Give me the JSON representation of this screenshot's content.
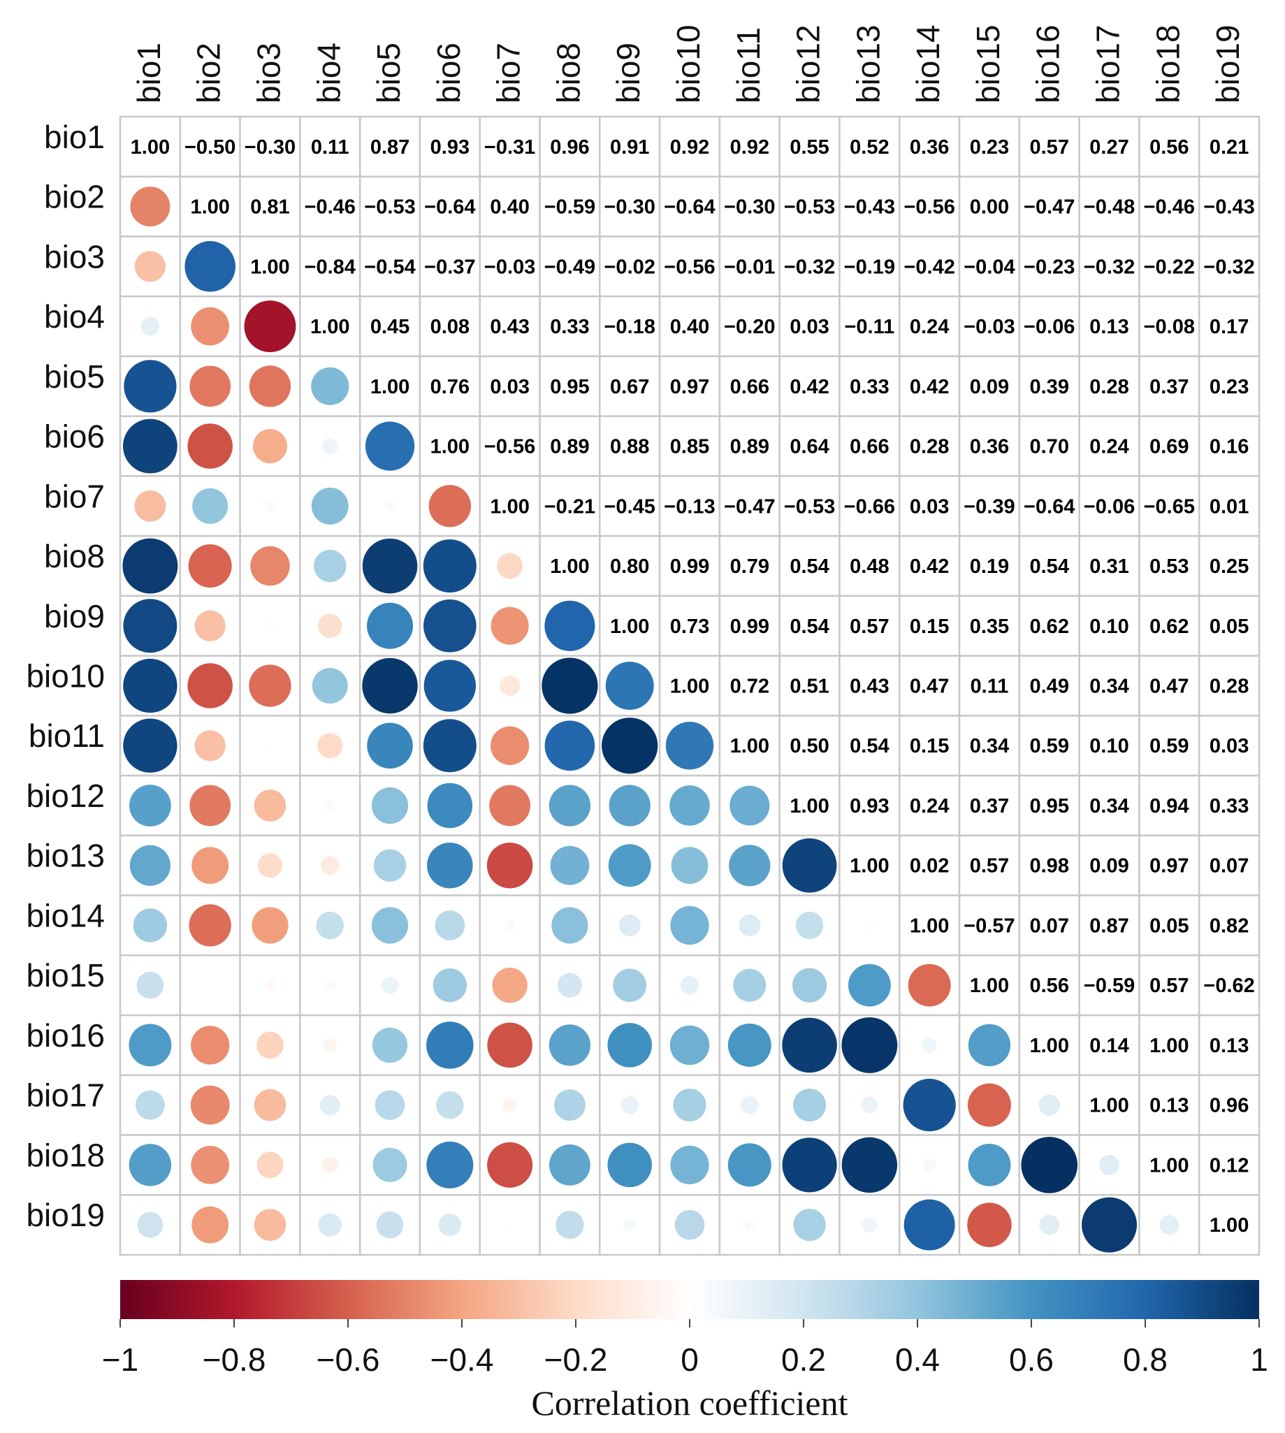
{
  "chart_data": {
    "type": "heatmap",
    "variables": [
      "bio1",
      "bio2",
      "bio3",
      "bio4",
      "bio5",
      "bio6",
      "bio7",
      "bio8",
      "bio9",
      "bio10",
      "bio11",
      "bio12",
      "bio13",
      "bio14",
      "bio15",
      "bio16",
      "bio17",
      "bio18",
      "bio19"
    ],
    "matrix": [
      [
        1.0,
        -0.5,
        -0.3,
        0.11,
        0.87,
        0.93,
        -0.31,
        0.96,
        0.91,
        0.92,
        0.92,
        0.55,
        0.52,
        0.36,
        0.23,
        0.57,
        0.27,
        0.56,
        0.21
      ],
      [
        -0.5,
        1.0,
        0.81,
        -0.46,
        -0.53,
        -0.64,
        0.4,
        -0.59,
        -0.3,
        -0.64,
        -0.3,
        -0.53,
        -0.43,
        -0.56,
        0.0,
        -0.47,
        -0.48,
        -0.46,
        -0.43
      ],
      [
        -0.3,
        0.81,
        1.0,
        -0.84,
        -0.54,
        -0.37,
        -0.03,
        -0.49,
        -0.02,
        -0.56,
        -0.01,
        -0.32,
        -0.19,
        -0.42,
        -0.04,
        -0.23,
        -0.32,
        -0.22,
        -0.32
      ],
      [
        0.11,
        -0.46,
        -0.84,
        1.0,
        0.45,
        0.08,
        0.43,
        0.33,
        -0.18,
        0.4,
        -0.2,
        0.03,
        -0.11,
        0.24,
        -0.03,
        -0.06,
        0.13,
        -0.08,
        0.17
      ],
      [
        0.87,
        -0.53,
        -0.54,
        0.45,
        1.0,
        0.76,
        0.03,
        0.95,
        0.67,
        0.97,
        0.66,
        0.42,
        0.33,
        0.42,
        0.09,
        0.39,
        0.28,
        0.37,
        0.23
      ],
      [
        0.93,
        -0.64,
        -0.37,
        0.08,
        0.76,
        1.0,
        -0.56,
        0.89,
        0.88,
        0.85,
        0.89,
        0.64,
        0.66,
        0.28,
        0.36,
        0.7,
        0.24,
        0.69,
        0.16
      ],
      [
        -0.31,
        0.4,
        -0.03,
        0.43,
        0.03,
        -0.56,
        1.0,
        -0.21,
        -0.45,
        -0.13,
        -0.47,
        -0.53,
        -0.66,
        0.03,
        -0.39,
        -0.64,
        -0.06,
        -0.65,
        0.01
      ],
      [
        0.96,
        -0.59,
        -0.49,
        0.33,
        0.95,
        0.89,
        -0.21,
        1.0,
        0.8,
        0.99,
        0.79,
        0.54,
        0.48,
        0.42,
        0.19,
        0.54,
        0.31,
        0.53,
        0.25
      ],
      [
        0.91,
        -0.3,
        -0.02,
        -0.18,
        0.67,
        0.88,
        -0.45,
        0.8,
        1.0,
        0.73,
        0.99,
        0.54,
        0.57,
        0.15,
        0.35,
        0.62,
        0.1,
        0.62,
        0.05
      ],
      [
        0.92,
        -0.64,
        -0.56,
        0.4,
        0.97,
        0.85,
        -0.13,
        0.99,
        0.73,
        1.0,
        0.72,
        0.51,
        0.43,
        0.47,
        0.11,
        0.49,
        0.34,
        0.47,
        0.28
      ],
      [
        0.92,
        -0.3,
        -0.01,
        -0.2,
        0.66,
        0.89,
        -0.47,
        0.79,
        0.99,
        0.72,
        1.0,
        0.5,
        0.54,
        0.15,
        0.34,
        0.59,
        0.1,
        0.59,
        0.03
      ],
      [
        0.55,
        -0.53,
        -0.32,
        0.03,
        0.42,
        0.64,
        -0.53,
        0.54,
        0.54,
        0.51,
        0.5,
        1.0,
        0.93,
        0.24,
        0.37,
        0.95,
        0.34,
        0.94,
        0.33
      ],
      [
        0.52,
        -0.43,
        -0.19,
        -0.11,
        0.33,
        0.66,
        -0.66,
        0.48,
        0.57,
        0.43,
        0.54,
        0.93,
        1.0,
        0.02,
        0.57,
        0.98,
        0.09,
        0.97,
        0.07
      ],
      [
        0.36,
        -0.56,
        -0.42,
        0.24,
        0.42,
        0.28,
        0.03,
        0.42,
        0.15,
        0.47,
        0.15,
        0.24,
        0.02,
        1.0,
        -0.57,
        0.07,
        0.87,
        0.05,
        0.82
      ],
      [
        0.23,
        0.0,
        -0.04,
        -0.03,
        0.09,
        0.36,
        -0.39,
        0.19,
        0.35,
        0.11,
        0.34,
        0.37,
        0.57,
        -0.57,
        1.0,
        0.56,
        -0.59,
        0.57,
        -0.62
      ],
      [
        0.57,
        -0.47,
        -0.23,
        -0.06,
        0.39,
        0.7,
        -0.64,
        0.54,
        0.62,
        0.49,
        0.59,
        0.95,
        0.98,
        0.07,
        0.56,
        1.0,
        0.14,
        1.0,
        0.13
      ],
      [
        0.27,
        -0.48,
        -0.32,
        0.13,
        0.28,
        0.24,
        -0.06,
        0.31,
        0.1,
        0.34,
        0.1,
        0.34,
        0.09,
        0.87,
        -0.59,
        0.14,
        1.0,
        0.13,
        0.96
      ],
      [
        0.56,
        -0.46,
        -0.22,
        -0.08,
        0.37,
        0.69,
        -0.65,
        0.53,
        0.62,
        0.47,
        0.59,
        0.94,
        0.97,
        0.05,
        0.57,
        1.0,
        0.13,
        1.0,
        0.12
      ],
      [
        0.21,
        -0.43,
        -0.32,
        0.17,
        0.23,
        0.16,
        0.01,
        0.25,
        0.05,
        0.28,
        0.03,
        0.33,
        0.07,
        0.82,
        -0.62,
        0.13,
        0.96,
        0.12,
        1.0
      ]
    ],
    "lower_triangle": "circle",
    "upper_triangle": "number",
    "colorbar": {
      "range": [
        -1,
        1
      ],
      "ticks": [
        -1,
        -0.8,
        -0.6,
        -0.4,
        -0.2,
        0,
        0.2,
        0.4,
        0.6,
        0.8,
        1
      ],
      "tick_labels": [
        "−1",
        "−0.8",
        "−0.6",
        "−0.4",
        "−0.2",
        "0",
        "0.2",
        "0.4",
        "0.6",
        "0.8",
        "1"
      ],
      "title": "Correlation coefficient",
      "colors": {
        "neg1": "#67001f",
        "neg": "#d6604d",
        "zero": "#ffffff",
        "pos": "#4393c3",
        "pos1": "#053061"
      }
    },
    "grid": true
  }
}
